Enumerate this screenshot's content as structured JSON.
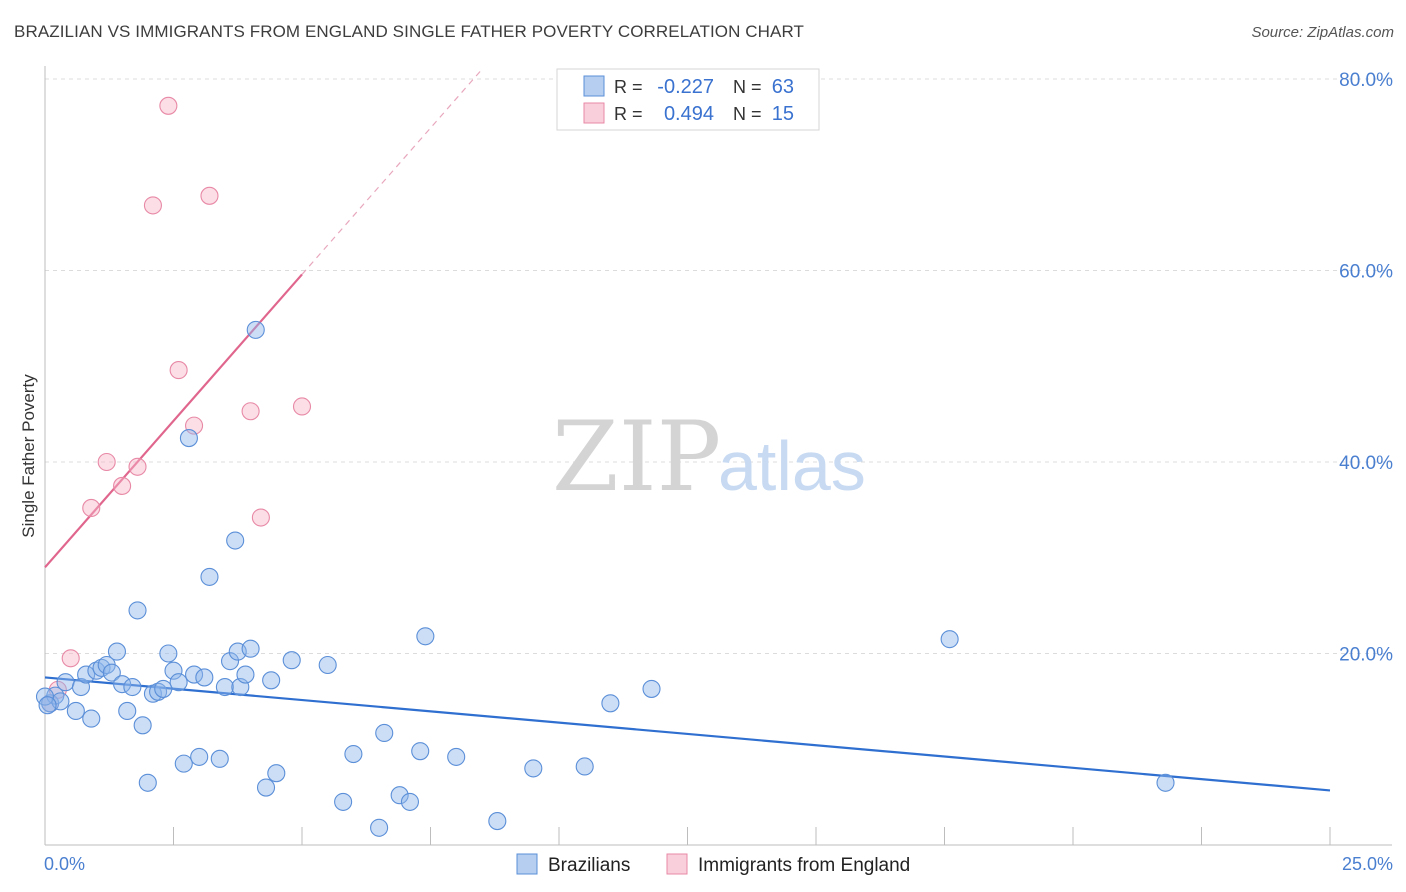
{
  "chart_data": {
    "type": "scatter",
    "title": "BRAZILIAN VS IMMIGRANTS FROM ENGLAND SINGLE FATHER POVERTY CORRELATION CHART",
    "source": "Source: ZipAtlas.com",
    "xlabel": "",
    "ylabel": "Single Father Poverty",
    "xlim": [
      0,
      25
    ],
    "ylim": [
      0,
      80
    ],
    "x_tick_labels": [
      "0.0%",
      "25.0%"
    ],
    "y_tick_values": [
      20,
      40,
      60,
      80
    ],
    "y_tick_labels": [
      "20.0%",
      "40.0%",
      "60.0%",
      "80.0%"
    ],
    "grid": true,
    "legend_position": "top-center",
    "watermark": {
      "part1": "ZIP",
      "part2": "atlas"
    },
    "stats": [
      {
        "r_label": "R =",
        "r_value": "-0.227",
        "n_label": "N =",
        "n_value": "63"
      },
      {
        "r_label": "R =",
        "r_value": "0.494",
        "n_label": "N =",
        "n_value": "15"
      }
    ],
    "series": [
      {
        "name": "Brazilians",
        "color": "#8fb6ea",
        "edge": "#5b8fd8",
        "trend_color": "#2f6fd0",
        "trend": {
          "x0": 0,
          "y0": 17.5,
          "x1": 25,
          "y1": 5.7,
          "solid_until": 25
        },
        "points": [
          [
            0.1,
            14.8
          ],
          [
            0.2,
            15.6
          ],
          [
            0.3,
            15.0
          ],
          [
            0.4,
            17.0
          ],
          [
            0.6,
            14.0
          ],
          [
            0.7,
            16.5
          ],
          [
            0.8,
            17.8
          ],
          [
            0.9,
            13.2
          ],
          [
            1.0,
            18.2
          ],
          [
            1.1,
            18.5
          ],
          [
            1.2,
            18.8
          ],
          [
            1.3,
            18.0
          ],
          [
            1.4,
            20.2
          ],
          [
            1.5,
            16.8
          ],
          [
            1.6,
            14.0
          ],
          [
            1.7,
            16.5
          ],
          [
            1.8,
            24.5
          ],
          [
            1.9,
            12.5
          ],
          [
            2.0,
            6.5
          ],
          [
            2.1,
            15.8
          ],
          [
            2.2,
            16.0
          ],
          [
            2.3,
            16.3
          ],
          [
            2.4,
            20.0
          ],
          [
            2.5,
            18.2
          ],
          [
            2.6,
            17.0
          ],
          [
            2.7,
            8.5
          ],
          [
            2.8,
            42.5
          ],
          [
            2.9,
            17.8
          ],
          [
            3.0,
            9.2
          ],
          [
            3.1,
            17.5
          ],
          [
            3.2,
            28.0
          ],
          [
            3.4,
            9.0
          ],
          [
            3.5,
            16.5
          ],
          [
            3.6,
            19.2
          ],
          [
            3.7,
            31.8
          ],
          [
            3.75,
            20.2
          ],
          [
            3.8,
            16.5
          ],
          [
            3.9,
            17.8
          ],
          [
            4.0,
            20.5
          ],
          [
            4.1,
            53.8
          ],
          [
            4.3,
            6.0
          ],
          [
            4.4,
            17.2
          ],
          [
            4.5,
            7.5
          ],
          [
            4.8,
            19.3
          ],
          [
            5.5,
            18.8
          ],
          [
            5.8,
            4.5
          ],
          [
            6.0,
            9.5
          ],
          [
            6.5,
            1.8
          ],
          [
            6.6,
            11.7
          ],
          [
            6.9,
            5.2
          ],
          [
            7.1,
            4.5
          ],
          [
            7.3,
            9.8
          ],
          [
            7.4,
            21.8
          ],
          [
            8.0,
            9.2
          ],
          [
            8.8,
            2.5
          ],
          [
            9.5,
            8.0
          ],
          [
            10.5,
            8.2
          ],
          [
            11.0,
            14.8
          ],
          [
            11.8,
            16.3
          ],
          [
            17.6,
            21.5
          ],
          [
            21.8,
            6.5
          ],
          [
            0.0,
            15.5
          ],
          [
            0.05,
            14.6
          ]
        ]
      },
      {
        "name": "Immigrants from England",
        "color": "#f6b6c8",
        "edge": "#e889a6",
        "trend_color": "#e0668e",
        "trend": {
          "x0": 0,
          "y0": 29.0,
          "x1": 8.5,
          "y1": 81.0,
          "solid_until": 5.0
        },
        "points": [
          [
            0.1,
            14.8
          ],
          [
            0.25,
            16.2
          ],
          [
            0.5,
            19.5
          ],
          [
            0.9,
            35.2
          ],
          [
            1.2,
            40.0
          ],
          [
            1.5,
            37.5
          ],
          [
            1.8,
            39.5
          ],
          [
            2.1,
            66.8
          ],
          [
            2.4,
            77.2
          ],
          [
            2.6,
            49.6
          ],
          [
            2.9,
            43.8
          ],
          [
            3.2,
            67.8
          ],
          [
            4.0,
            45.3
          ],
          [
            4.2,
            34.2
          ],
          [
            5.0,
            45.8
          ]
        ]
      }
    ]
  }
}
